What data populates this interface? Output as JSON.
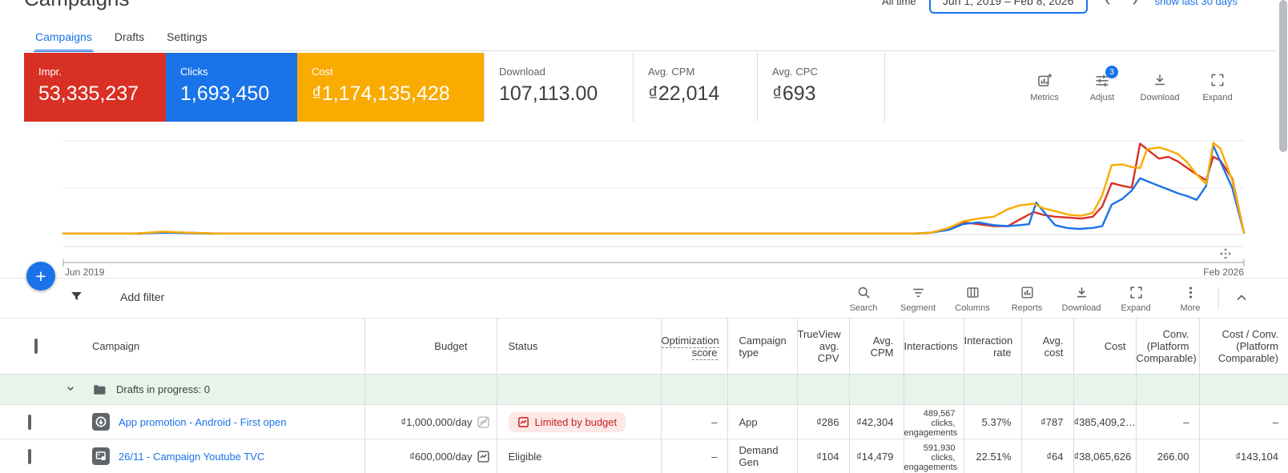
{
  "header": {
    "title": "Campaigns",
    "date_range_label": "All time",
    "date_range": "Jun 1, 2019 – Feb 8, 2026",
    "show_last_link": "show last 30 days"
  },
  "tabs": [
    {
      "label": "Campaigns",
      "active": true
    },
    {
      "label": "Drafts",
      "active": false
    },
    {
      "label": "Settings",
      "active": false
    }
  ],
  "scorecards": [
    {
      "label": "Impr.",
      "value": "53,335,237",
      "color": "#d93025"
    },
    {
      "label": "Clicks",
      "value": "1,693,450",
      "color": "#1a73e8"
    },
    {
      "label": "Cost",
      "value": "₫1,174,135,428",
      "color": "#f9ab00"
    },
    {
      "label": "Download",
      "value": "107,113.00"
    },
    {
      "label": "Avg. CPM",
      "value": "₫22,014"
    },
    {
      "label": "Avg. CPC",
      "value": "₫693"
    }
  ],
  "metrics_actions": [
    {
      "label": "Metrics"
    },
    {
      "label": "Adjust",
      "badge": "3"
    },
    {
      "label": "Download"
    },
    {
      "label": "Expand"
    }
  ],
  "chart_data": {
    "type": "line",
    "title": "",
    "x_labels": {
      "start": "Jun 2019",
      "end": "Feb 2026"
    },
    "y_axis": {
      "tick_labels_visible": false,
      "gridlines": 3
    },
    "legend_position": "none",
    "units_note": "x = fraction of time axis Jun 2019 to Feb 2026; y = percent of chart maximum",
    "series": [
      {
        "name": "Impressions",
        "color": "#d93025",
        "points": [
          [
            0,
            1
          ],
          [
            0.06,
            1
          ],
          [
            0.085,
            2.5
          ],
          [
            0.105,
            2
          ],
          [
            0.13,
            1
          ],
          [
            0.3,
            1
          ],
          [
            0.55,
            1
          ],
          [
            0.72,
            1
          ],
          [
            0.735,
            2
          ],
          [
            0.75,
            6
          ],
          [
            0.762,
            13
          ],
          [
            0.775,
            11
          ],
          [
            0.788,
            9
          ],
          [
            0.8,
            9
          ],
          [
            0.81,
            16
          ],
          [
            0.822,
            24
          ],
          [
            0.83,
            21
          ],
          [
            0.84,
            19
          ],
          [
            0.852,
            18
          ],
          [
            0.862,
            17
          ],
          [
            0.872,
            19
          ],
          [
            0.88,
            30
          ],
          [
            0.888,
            55
          ],
          [
            0.897,
            52
          ],
          [
            0.905,
            50
          ],
          [
            0.912,
            97
          ],
          [
            0.92,
            89
          ],
          [
            0.928,
            81
          ],
          [
            0.936,
            83
          ],
          [
            0.944,
            78
          ],
          [
            0.952,
            71
          ],
          [
            0.96,
            64
          ],
          [
            0.968,
            58
          ],
          [
            0.974,
            83
          ],
          [
            0.98,
            79
          ],
          [
            0.99,
            60
          ],
          [
            1,
            2
          ]
        ]
      },
      {
        "name": "Clicks",
        "color": "#1a73e8",
        "points": [
          [
            0,
            1
          ],
          [
            0.06,
            1
          ],
          [
            0.085,
            2
          ],
          [
            0.105,
            1.5
          ],
          [
            0.13,
            1
          ],
          [
            0.3,
            1
          ],
          [
            0.55,
            1
          ],
          [
            0.72,
            1
          ],
          [
            0.735,
            2
          ],
          [
            0.75,
            5
          ],
          [
            0.762,
            11
          ],
          [
            0.775,
            13
          ],
          [
            0.788,
            10
          ],
          [
            0.8,
            9
          ],
          [
            0.81,
            10
          ],
          [
            0.818,
            11
          ],
          [
            0.824,
            34
          ],
          [
            0.832,
            22
          ],
          [
            0.84,
            10
          ],
          [
            0.85,
            7
          ],
          [
            0.86,
            6
          ],
          [
            0.872,
            7
          ],
          [
            0.88,
            9
          ],
          [
            0.888,
            32
          ],
          [
            0.897,
            38
          ],
          [
            0.905,
            47
          ],
          [
            0.912,
            60
          ],
          [
            0.92,
            56
          ],
          [
            0.928,
            52
          ],
          [
            0.936,
            48
          ],
          [
            0.944,
            44
          ],
          [
            0.952,
            41
          ],
          [
            0.96,
            37
          ],
          [
            0.968,
            52
          ],
          [
            0.974,
            95
          ],
          [
            0.98,
            78
          ],
          [
            0.99,
            50
          ],
          [
            1,
            2
          ]
        ]
      },
      {
        "name": "Cost",
        "color": "#f9ab00",
        "points": [
          [
            0,
            1
          ],
          [
            0.06,
            1
          ],
          [
            0.085,
            3
          ],
          [
            0.105,
            2
          ],
          [
            0.13,
            1
          ],
          [
            0.3,
            1
          ],
          [
            0.55,
            1
          ],
          [
            0.72,
            1
          ],
          [
            0.735,
            2
          ],
          [
            0.75,
            7
          ],
          [
            0.762,
            14
          ],
          [
            0.775,
            17
          ],
          [
            0.788,
            19
          ],
          [
            0.8,
            27
          ],
          [
            0.81,
            31
          ],
          [
            0.822,
            33
          ],
          [
            0.83,
            28
          ],
          [
            0.84,
            25
          ],
          [
            0.852,
            21
          ],
          [
            0.862,
            20
          ],
          [
            0.872,
            23
          ],
          [
            0.88,
            42
          ],
          [
            0.888,
            74
          ],
          [
            0.897,
            75
          ],
          [
            0.905,
            72
          ],
          [
            0.912,
            71
          ],
          [
            0.918,
            91
          ],
          [
            0.928,
            93
          ],
          [
            0.936,
            90
          ],
          [
            0.944,
            86
          ],
          [
            0.952,
            77
          ],
          [
            0.96,
            64
          ],
          [
            0.968,
            54
          ],
          [
            0.974,
            98
          ],
          [
            0.98,
            92
          ],
          [
            0.99,
            58
          ],
          [
            1,
            2
          ]
        ]
      }
    ]
  },
  "fab_label": "+",
  "filter_bar": {
    "add_filter_label": "Add filter",
    "actions": [
      {
        "label": "Search"
      },
      {
        "label": "Segment"
      },
      {
        "label": "Columns"
      },
      {
        "label": "Reports"
      },
      {
        "label": "Download"
      },
      {
        "label": "Expand"
      },
      {
        "label": "More"
      }
    ]
  },
  "table": {
    "columns": [
      "Campaign",
      "Budget",
      "Status",
      "Optimization score",
      "Campaign type",
      "TrueView avg. CPV",
      "Avg. CPM",
      "Interactions",
      "Interaction rate",
      "Avg. cost",
      "Cost",
      "Conv. (Platform Comparable)",
      "Cost / Conv. (Platform Comparable)"
    ],
    "drafts_row": {
      "label": "Drafts in progress: 0"
    },
    "rows": [
      {
        "name": "App promotion - Android - First open",
        "status_dot": "#1e8e3e",
        "budget": "₫1,000,000/day",
        "status": "Limited by budget",
        "status_type": "limited",
        "opt_score": "–",
        "campaign_type": "App",
        "trueview_cpv": "₫286",
        "avg_cpm": "₫42,304",
        "interactions": [
          "489,567",
          "clicks,",
          "engagements"
        ],
        "interaction_rate": "5.37%",
        "avg_cost": "₫787",
        "cost": "₫385,409,2…",
        "conv": "–",
        "cost_conv": "–"
      },
      {
        "name": "26/11 - Campaign Youtube TVC",
        "status_dot": "#1e8e3e",
        "budget": "₫600,000/day",
        "status": "Eligible",
        "status_type": "eligible",
        "opt_score": "–",
        "campaign_type": "Demand Gen",
        "trueview_cpv": "₫104",
        "avg_cpm": "₫14,479",
        "interactions": [
          "591,930",
          "clicks,",
          "engagements"
        ],
        "interaction_rate": "22.51%",
        "avg_cost": "₫64",
        "cost": "₫38,065,626",
        "conv": "266.00",
        "cost_conv": "₫143,104"
      }
    ]
  }
}
